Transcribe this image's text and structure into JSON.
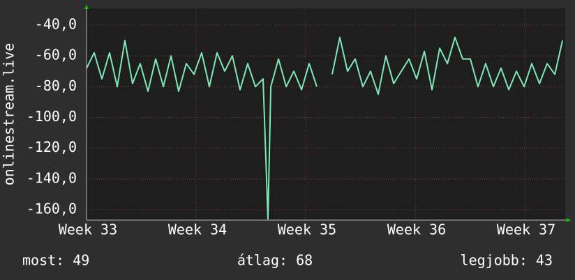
{
  "chart_data": {
    "type": "line",
    "ylabel": "onlinestream.live",
    "x": [
      33.0,
      33.07,
      33.14,
      33.21,
      33.28,
      33.35,
      33.42,
      33.49,
      33.561,
      33.631,
      33.701,
      33.771,
      33.841,
      33.911,
      33.981,
      34.051,
      34.121,
      34.191,
      34.261,
      34.331,
      34.401,
      34.471,
      34.541,
      34.611,
      34.656,
      34.682,
      34.752,
      34.822,
      34.892,
      34.962,
      35.032,
      35.102,
      35.172,
      35.242,
      35.312,
      35.382,
      35.452,
      35.522,
      35.592,
      35.662,
      35.732,
      35.803,
      35.873,
      35.943,
      36.013,
      36.083,
      36.153,
      36.223,
      36.293,
      36.363,
      36.433,
      36.503,
      36.573,
      36.643,
      36.713,
      36.783,
      36.854,
      36.924,
      36.994,
      37.064,
      37.134,
      37.204,
      37.274,
      37.344
    ],
    "series": [
      {
        "name": "onlinestream.live",
        "color": "#7ee8b8",
        "values": [
          -68,
          -58,
          -75,
          -58,
          -80,
          -50,
          -78,
          -65,
          -83,
          -62,
          -80,
          -60,
          -83,
          -65,
          -72,
          -58,
          -80,
          -58,
          -70,
          -60,
          -82,
          -65,
          -80,
          -75,
          -166,
          -80,
          -62,
          -80,
          -70,
          -82,
          -65,
          -80,
          null,
          -72,
          -48,
          -70,
          -62,
          -80,
          -70,
          -85,
          -60,
          -78,
          -70,
          -62,
          -75,
          -57,
          -82,
          -55,
          -65,
          -48,
          -62,
          -62,
          -80,
          -65,
          -80,
          -68,
          -82,
          -70,
          -80,
          -65,
          -78,
          -65,
          -72,
          -50
        ]
      }
    ],
    "xlim": [
      33,
      37.369
    ],
    "ylim": [
      -166.8,
      -29.1
    ],
    "xticks": [
      {
        "value": 33,
        "label": "Week 33"
      },
      {
        "value": 34,
        "label": "Week 34"
      },
      {
        "value": 35,
        "label": "Week 35"
      },
      {
        "value": 36,
        "label": "Week 36"
      },
      {
        "value": 37,
        "label": "Week 37"
      }
    ],
    "yticks": [
      {
        "value": -160,
        "label": "-160,0"
      },
      {
        "value": -140,
        "label": "-140,0"
      },
      {
        "value": -120,
        "label": "-120,0"
      },
      {
        "value": -100,
        "label": "-100,0"
      },
      {
        "value": -80,
        "label": "-80,0"
      },
      {
        "value": -60,
        "label": "-60,0"
      },
      {
        "value": -40,
        "label": "-40,0"
      }
    ],
    "grid": true,
    "stats": [
      "most: 49",
      "átlag: 68",
      "legjobb: 43"
    ]
  }
}
